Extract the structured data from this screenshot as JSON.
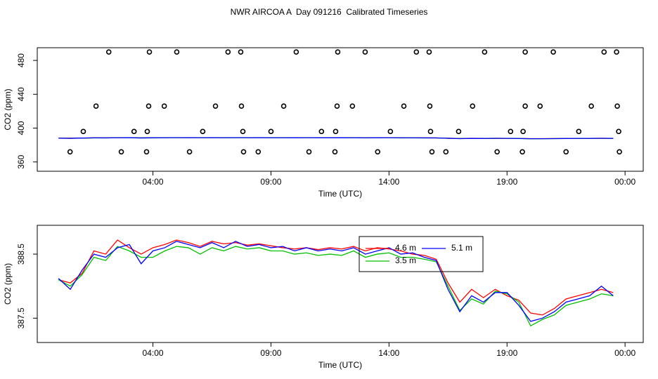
{
  "title": "NWR AIRCOA A  Day 091216  Calibrated Timeseries",
  "chart_data": [
    {
      "type": "line",
      "x_label": "Time (UTC)",
      "y_label": "CO2 (ppm)",
      "xlim": [
        -0.9,
        24.77
      ],
      "ylim": [
        349,
        495
      ],
      "xticks": [
        {
          "value": 4,
          "label": "04:00"
        },
        {
          "value": 9,
          "label": "09:00"
        },
        {
          "value": 14,
          "label": "14:00"
        },
        {
          "value": 19,
          "label": "19:00"
        },
        {
          "value": 24,
          "label": "00:00"
        }
      ],
      "yticks": [
        360,
        400,
        440,
        480
      ],
      "x": [
        0,
        0.5,
        1,
        1.5,
        2,
        2.5,
        3,
        3.5,
        4,
        4.5,
        5,
        5.5,
        6,
        6.5,
        7,
        7.5,
        8,
        8.5,
        9,
        9.5,
        10,
        10.5,
        11,
        11.5,
        12,
        12.5,
        13,
        13.5,
        14,
        14.5,
        15,
        15.5,
        16,
        16.5,
        17,
        17.5,
        18,
        18.5,
        19,
        19.5,
        20,
        20.5,
        21,
        21.5,
        22,
        22.5,
        23,
        23.5
      ],
      "series": [
        {
          "color": "#ff0000",
          "values": [
            388.1,
            388.05,
            388.2,
            388.55,
            388.5,
            388.72,
            388.6,
            388.5,
            388.6,
            388.65,
            388.72,
            388.68,
            388.62,
            388.7,
            388.66,
            388.68,
            388.64,
            388.66,
            388.63,
            388.6,
            388.58,
            388.6,
            388.57,
            388.6,
            388.58,
            388.62,
            388.55,
            388.6,
            388.58,
            388.55,
            388.5,
            388.48,
            388.42,
            388.05,
            387.75,
            387.95,
            387.82,
            387.95,
            387.85,
            387.78,
            387.58,
            387.55,
            387.65,
            387.8,
            387.85,
            387.9,
            387.95,
            387.9
          ]
        },
        {
          "color": "#00c000",
          "values": [
            388.1,
            388.0,
            388.18,
            388.45,
            388.4,
            388.62,
            388.55,
            388.45,
            388.45,
            388.55,
            388.62,
            388.6,
            388.5,
            388.6,
            388.55,
            388.62,
            388.58,
            388.6,
            388.55,
            388.55,
            388.5,
            388.52,
            388.48,
            388.5,
            388.48,
            388.55,
            388.45,
            388.5,
            388.52,
            388.45,
            388.45,
            388.42,
            388.38,
            388.0,
            387.62,
            387.8,
            387.72,
            387.92,
            387.88,
            387.75,
            387.38,
            387.48,
            387.55,
            387.7,
            387.75,
            387.8,
            387.88,
            387.85
          ]
        },
        {
          "color": "#0000ff",
          "values": [
            388.12,
            387.95,
            388.25,
            388.5,
            388.45,
            388.6,
            388.65,
            388.35,
            388.55,
            388.6,
            388.7,
            388.65,
            388.6,
            388.68,
            388.6,
            388.7,
            388.62,
            388.65,
            388.6,
            388.62,
            388.55,
            388.6,
            388.55,
            388.58,
            388.55,
            388.6,
            388.5,
            388.55,
            388.6,
            388.5,
            388.52,
            388.45,
            388.4,
            387.95,
            387.6,
            387.85,
            387.75,
            387.9,
            387.9,
            387.7,
            387.45,
            387.5,
            387.6,
            387.75,
            387.8,
            387.85,
            388.0,
            387.85
          ]
        }
      ],
      "points": {
        "color": "#000000",
        "x": [
          2.13,
          3.85,
          5.01,
          7.18,
          7.72,
          10.07,
          11.83,
          12.99,
          15.16,
          15.7,
          18.05,
          19.77,
          20.96,
          23.11,
          23.64,
          1.59,
          3.82,
          4.48,
          6.65,
          7.75,
          9.54,
          11.8,
          12.45,
          14.63,
          15.73,
          17.54,
          19.77,
          20.4,
          22.57,
          23.67,
          1.05,
          3.2,
          3.76,
          6.11,
          7.81,
          9.0,
          11.14,
          11.74,
          14.06,
          15.76,
          16.95,
          19.15,
          19.68,
          22.04,
          23.73,
          0.49,
          2.66,
          3.73,
          5.55,
          7.84,
          8.46,
          10.61,
          11.71,
          13.52,
          15.82,
          16.41,
          18.58,
          19.65,
          21.5,
          23.76
        ],
        "values": [
          490,
          490,
          490,
          490,
          490,
          490,
          490,
          490,
          490,
          490,
          490,
          490,
          490,
          490,
          490,
          426,
          426,
          426,
          426,
          426,
          426,
          426,
          426,
          426,
          426,
          426,
          426,
          426,
          426,
          426,
          396,
          396,
          396,
          396,
          396,
          396,
          396,
          396,
          396,
          396,
          396,
          396,
          396,
          396,
          396,
          372,
          372,
          372,
          372,
          372,
          372,
          372,
          372,
          372,
          372,
          372,
          372,
          372,
          372,
          372
        ]
      }
    },
    {
      "type": "line",
      "x_label": "Time (UTC)",
      "y_label": "CO2 (ppm)",
      "xlim": [
        -0.9,
        24.77
      ],
      "ylim": [
        387.12,
        388.95
      ],
      "xticks": [
        {
          "value": 4,
          "label": "04:00"
        },
        {
          "value": 9,
          "label": "09:00"
        },
        {
          "value": 14,
          "label": "14:00"
        },
        {
          "value": 19,
          "label": "19:00"
        },
        {
          "value": 24,
          "label": "00:00"
        }
      ],
      "yticks": [
        387.5,
        388.5
      ],
      "legend": true,
      "x": [
        0,
        0.5,
        1,
        1.5,
        2,
        2.5,
        3,
        3.5,
        4,
        4.5,
        5,
        5.5,
        6,
        6.5,
        7,
        7.5,
        8,
        8.5,
        9,
        9.5,
        10,
        10.5,
        11,
        11.5,
        12,
        12.5,
        13,
        13.5,
        14,
        14.5,
        15,
        15.5,
        16,
        16.5,
        17,
        17.5,
        18,
        18.5,
        19,
        19.5,
        20,
        20.5,
        21,
        21.5,
        22,
        22.5,
        23,
        23.5
      ],
      "series": [
        {
          "name": "4.6 m",
          "color": "#ff0000",
          "values": [
            388.1,
            388.05,
            388.2,
            388.55,
            388.5,
            388.72,
            388.6,
            388.5,
            388.6,
            388.65,
            388.72,
            388.68,
            388.62,
            388.7,
            388.66,
            388.68,
            388.64,
            388.66,
            388.63,
            388.6,
            388.58,
            388.6,
            388.57,
            388.6,
            388.58,
            388.62,
            388.55,
            388.6,
            388.58,
            388.55,
            388.5,
            388.48,
            388.42,
            388.05,
            387.75,
            387.95,
            387.82,
            387.95,
            387.85,
            387.78,
            387.58,
            387.55,
            387.65,
            387.8,
            387.85,
            387.9,
            387.95,
            387.9
          ]
        },
        {
          "name": "3.5 m",
          "color": "#00c000",
          "values": [
            388.1,
            388.0,
            388.18,
            388.45,
            388.4,
            388.62,
            388.55,
            388.45,
            388.45,
            388.55,
            388.62,
            388.6,
            388.5,
            388.6,
            388.55,
            388.62,
            388.58,
            388.6,
            388.55,
            388.55,
            388.5,
            388.52,
            388.48,
            388.5,
            388.48,
            388.55,
            388.45,
            388.5,
            388.52,
            388.45,
            388.45,
            388.42,
            388.38,
            388.0,
            387.62,
            387.8,
            387.72,
            387.92,
            387.88,
            387.75,
            387.38,
            387.48,
            387.55,
            387.7,
            387.75,
            387.8,
            387.88,
            387.85
          ]
        },
        {
          "name": "5.1 m",
          "color": "#0000ff",
          "values": [
            388.12,
            387.95,
            388.25,
            388.5,
            388.45,
            388.6,
            388.65,
            388.35,
            388.55,
            388.6,
            388.7,
            388.65,
            388.6,
            388.68,
            388.6,
            388.7,
            388.62,
            388.65,
            388.6,
            388.62,
            388.55,
            388.6,
            388.55,
            388.58,
            388.55,
            388.6,
            388.5,
            388.55,
            388.6,
            388.5,
            388.52,
            388.45,
            388.4,
            387.95,
            387.6,
            387.85,
            387.75,
            387.9,
            387.9,
            387.7,
            387.45,
            387.5,
            387.6,
            387.75,
            387.8,
            387.85,
            388.0,
            387.85
          ]
        }
      ]
    }
  ]
}
